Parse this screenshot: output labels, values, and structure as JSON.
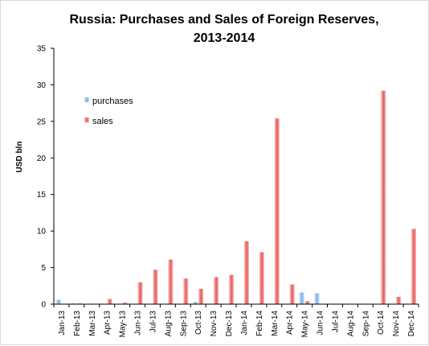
{
  "colors": {
    "purchases": "#7ab3e6",
    "purchases_light": "#cfe3f6",
    "sales": "#e8585a",
    "sales_light": "#f8c1c1"
  },
  "chart_data": {
    "type": "bar",
    "title": "Russia: Purchases and Sales of Foreign Reserves,",
    "title_line2": "2013-2014",
    "ylabel": "USD bln",
    "xlabel": "",
    "ylim": [
      0,
      35
    ],
    "yticks": [
      "0",
      "5",
      "10",
      "15",
      "20",
      "25",
      "30",
      "35"
    ],
    "grid": false,
    "legend_position": "upper-left",
    "categories": [
      "Jan-13",
      "Feb-13",
      "Mar-13",
      "Apr-13",
      "May-13",
      "Jun-13",
      "Jul-13",
      "Aug-13",
      "Sep-13",
      "Oct-13",
      "Nov-13",
      "Dec-13",
      "Jan-14",
      "Feb-14",
      "Mar-14",
      "Apr-14",
      "May-14",
      "Jun-14",
      "Jul-14",
      "Aug-14",
      "Sep-14",
      "Oct-14",
      "Nov-14",
      "Dec-14"
    ],
    "series": [
      {
        "name": "purchases",
        "values": [
          0.6,
          0.1,
          0,
          0,
          0,
          0,
          0,
          0,
          0,
          0.3,
          0,
          0,
          0,
          0,
          0,
          0,
          1.6,
          1.5,
          0,
          0,
          0,
          0,
          0,
          0
        ]
      },
      {
        "name": "sales",
        "values": [
          0,
          0.1,
          0,
          0.7,
          0.2,
          3.0,
          4.7,
          6.1,
          3.5,
          2.1,
          3.7,
          4.0,
          8.6,
          7.1,
          25.4,
          2.7,
          0.4,
          0,
          0,
          0,
          0,
          29.2,
          1.0,
          10.3
        ]
      }
    ]
  }
}
